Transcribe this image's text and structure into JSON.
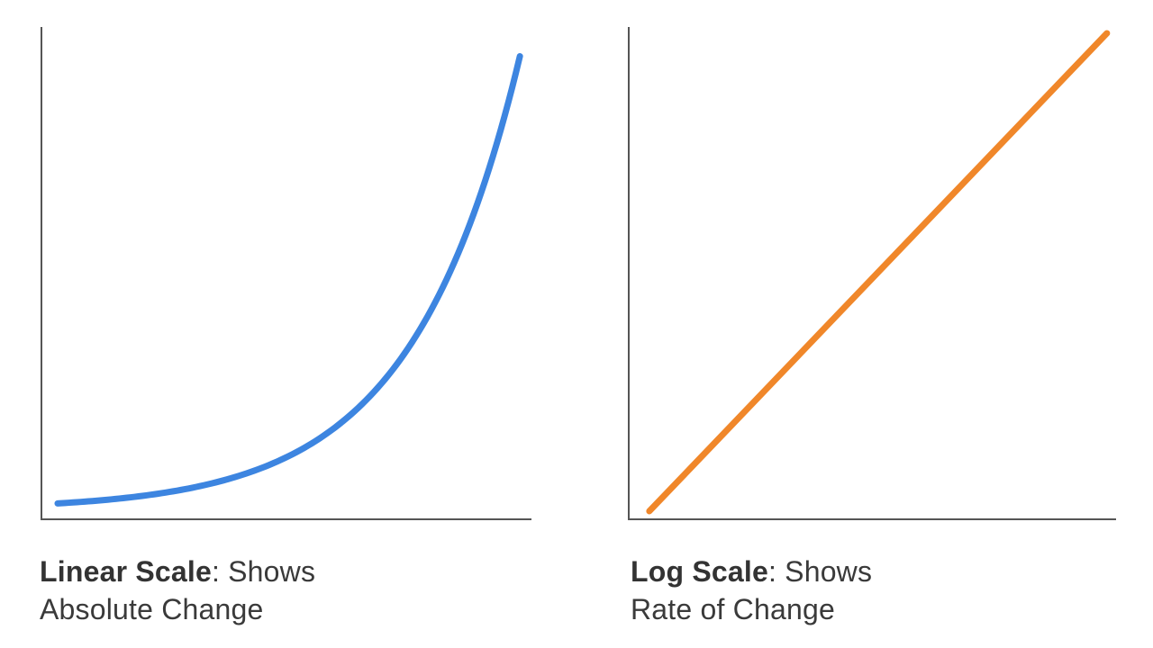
{
  "chart_data": [
    {
      "type": "line",
      "title": "",
      "xlabel": "",
      "ylabel": "",
      "y_scale": "linear",
      "grid": false,
      "legend": "none",
      "x": [
        0,
        1,
        2,
        3,
        4,
        5,
        6,
        7,
        8,
        9,
        10
      ],
      "series": [
        {
          "color": "#3d85e0",
          "values": [
            1,
            1.53,
            2.35,
            3.6,
            5.52,
            8.45,
            12.95,
            19.84,
            30.4,
            46.58,
            71.4
          ]
        }
      ],
      "xlim": [
        -0.35,
        10.25
      ],
      "ylim": [
        -1.5,
        76
      ],
      "caption": {
        "strong": "Linear Scale",
        "rest": ": Shows",
        "line2": "Absolute Change"
      }
    },
    {
      "type": "line",
      "title": "",
      "xlabel": "",
      "ylabel": "",
      "y_scale": "log",
      "grid": false,
      "legend": "none",
      "x": [
        0,
        10
      ],
      "series": [
        {
          "color": "#f0872a",
          "values": [
            1,
            71.4
          ]
        }
      ],
      "xlim": [
        -0.45,
        10.2
      ],
      "ylim": [
        0.93,
        75.5
      ],
      "caption": {
        "strong": "Log Scale",
        "rest": ": Shows",
        "line2": "Rate of Change"
      }
    }
  ]
}
